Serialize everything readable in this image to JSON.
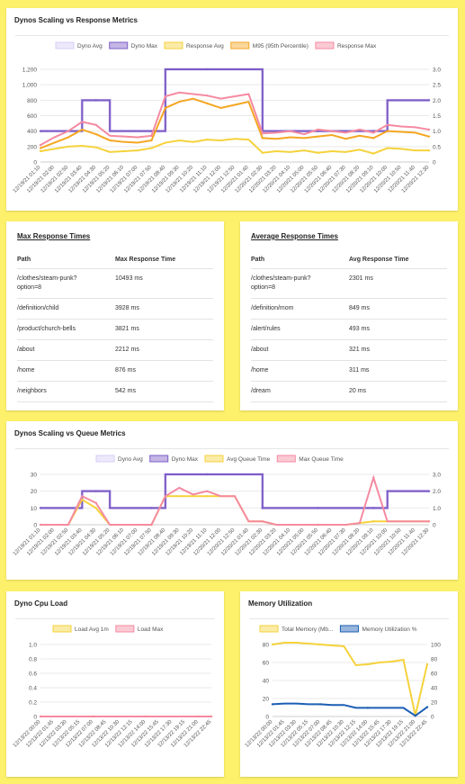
{
  "colors": {
    "dyno_avg": "#d6cff5",
    "dyno_max": "#7d5cc6",
    "response_avg": "#f5d23c",
    "m95": "#f5a623",
    "response_max": "#f58aa0",
    "total_memory": "#f5d23c",
    "memory_util": "#1b5eb4",
    "background": "#fdf06a"
  },
  "cards": {
    "response_title": "Dynos Scaling vs Response Metrics",
    "max_title": "Max Response Times",
    "avg_title": "Average Response Times",
    "queue_title": "Dynos Scaling vs Queue Metrics",
    "cpu_title": "Dyno Cpu Load",
    "memory_title": "Memory Utilization"
  },
  "max_table": {
    "headers": [
      "Path",
      "Max Response Time"
    ],
    "rows": [
      [
        "/clothes/steam-punk?option=8",
        "10493 ms"
      ],
      [
        "/definition/child",
        "3928 ms"
      ],
      [
        "/product/church-bells",
        "3821 ms"
      ],
      [
        "/about",
        "2212 ms"
      ],
      [
        "/home",
        "876 ms"
      ],
      [
        "/neighbors",
        "542 ms"
      ]
    ]
  },
  "avg_table": {
    "headers": [
      "Path",
      "Avg Response Time"
    ],
    "rows": [
      [
        "/clothes/steam-punk?option=8",
        "2301 ms"
      ],
      [
        "/definition/mom",
        "849 ms"
      ],
      [
        "/alert/rules",
        "493 ms"
      ],
      [
        "/about",
        "321 ms"
      ],
      [
        "/home",
        "311 ms"
      ],
      [
        "/dream",
        "20 ms"
      ]
    ]
  },
  "chart_data": [
    {
      "type": "line",
      "title": "Dynos Scaling vs Response Metrics",
      "x": [
        "12/19/21 01:10",
        "12/19/21 02:00",
        "12/19/21 02:50",
        "12/19/21 03:40",
        "12/19/21 04:30",
        "12/19/21 05:20",
        "12/19/21 06:10",
        "12/19/21 07:00",
        "12/19/21 07:50",
        "12/19/21 08:40",
        "12/19/21 09:30",
        "12/19/21 10:20",
        "12/19/21 11:10",
        "12/19/21 12:00",
        "12/19/21 12:50",
        "12/20/21 01:40",
        "12/20/21 02:30",
        "12/20/21 03:20",
        "12/20/21 04:10",
        "12/20/21 05:00",
        "12/20/21 05:50",
        "12/20/21 06:40",
        "12/20/21 07:30",
        "12/20/21 08:20",
        "12/20/21 09:10",
        "12/20/21 10:00",
        "12/20/21 10:50",
        "12/20/21 11:40",
        "12/20/21 12:30"
      ],
      "ylim": [
        0,
        1200
      ],
      "y2lim": [
        0,
        3
      ],
      "yticks": [
        "0",
        "200",
        "400",
        "600",
        "800",
        "1,000",
        "1,200"
      ],
      "y2ticks": [
        "0",
        "0.5",
        "1.0",
        "1.5",
        "2.0",
        "2.5",
        "3.0"
      ],
      "legend": "top",
      "series": [
        {
          "name": "Dyno Avg",
          "axis": "right",
          "values": [
            1,
            1,
            1,
            2,
            2,
            1,
            1,
            1,
            1,
            3,
            3,
            3,
            3,
            3,
            3,
            3,
            1,
            1,
            1,
            1,
            1,
            1,
            1,
            1,
            1,
            2,
            2,
            2,
            2
          ]
        },
        {
          "name": "Dyno Max",
          "axis": "right",
          "values": [
            1,
            1,
            1,
            2,
            2,
            1,
            1,
            1,
            1,
            3,
            3,
            3,
            3,
            3,
            3,
            3,
            1,
            1,
            1,
            1,
            1,
            1,
            1,
            1,
            1,
            2,
            2,
            2,
            2
          ]
        },
        {
          "name": "Response Avg",
          "axis": "left",
          "values": [
            140,
            170,
            200,
            210,
            190,
            130,
            140,
            150,
            180,
            250,
            280,
            260,
            290,
            280,
            300,
            290,
            120,
            140,
            130,
            150,
            120,
            140,
            130,
            160,
            110,
            180,
            170,
            150,
            150
          ]
        },
        {
          "name": "M95 (95th Percentile)",
          "axis": "left",
          "values": [
            180,
            250,
            320,
            420,
            360,
            280,
            260,
            250,
            280,
            700,
            780,
            820,
            760,
            700,
            740,
            780,
            310,
            300,
            320,
            310,
            330,
            350,
            300,
            340,
            310,
            400,
            390,
            380,
            330
          ]
        },
        {
          "name": "Response Max",
          "axis": "left",
          "values": [
            220,
            320,
            400,
            520,
            480,
            340,
            330,
            320,
            340,
            850,
            900,
            880,
            860,
            820,
            850,
            880,
            370,
            380,
            400,
            360,
            420,
            400,
            380,
            420,
            380,
            480,
            460,
            450,
            420
          ]
        }
      ]
    },
    {
      "type": "line",
      "title": "Dynos Scaling vs Queue Metrics",
      "x": [
        "12/19/21 01:10",
        "12/19/21 02:00",
        "12/19/21 02:50",
        "12/19/21 03:40",
        "12/19/21 04:30",
        "12/19/21 05:20",
        "12/19/21 06:10",
        "12/19/21 07:00",
        "12/19/21 07:50",
        "12/19/21 08:40",
        "12/19/21 09:30",
        "12/19/21 10:20",
        "12/19/21 11:10",
        "12/20/21 12:00",
        "12/20/21 12:50",
        "12/20/21 01:40",
        "12/20/21 02:30",
        "12/20/21 03:20",
        "12/20/21 04:10",
        "12/20/21 05:00",
        "12/20/21 05:50",
        "12/20/21 06:40",
        "12/20/21 07:30",
        "12/20/21 08:20",
        "12/20/21 09:10",
        "12/20/21 10:00",
        "12/20/21 10:50",
        "12/20/21 11:40",
        "12/20/21 12:30"
      ],
      "ylim": [
        0,
        30
      ],
      "y2lim": [
        0,
        3
      ],
      "yticks": [
        "0",
        "10",
        "20",
        "30"
      ],
      "y2ticks": [
        "0",
        "1.0",
        "2.0",
        "3.0"
      ],
      "legend": "top",
      "series": [
        {
          "name": "Dyno Avg",
          "axis": "right",
          "values": [
            1,
            1,
            1,
            2,
            2,
            1,
            1,
            1,
            1,
            3,
            3,
            3,
            3,
            3,
            3,
            3,
            1,
            1,
            1,
            1,
            1,
            1,
            1,
            1,
            1,
            2,
            2,
            2,
            2
          ]
        },
        {
          "name": "Dyno Max",
          "axis": "right",
          "values": [
            1,
            1,
            1,
            2,
            2,
            1,
            1,
            1,
            1,
            3,
            3,
            3,
            3,
            3,
            3,
            3,
            1,
            1,
            1,
            1,
            1,
            1,
            1,
            1,
            1,
            2,
            2,
            2,
            2
          ]
        },
        {
          "name": "Avg Queue Time",
          "axis": "left",
          "values": [
            0,
            0,
            0,
            15,
            10,
            0,
            0,
            0,
            0,
            17,
            17,
            17,
            17,
            17,
            17,
            2,
            2,
            0,
            0,
            0,
            0,
            0,
            0,
            1,
            2,
            2,
            2,
            2,
            2
          ]
        },
        {
          "name": "Max Queue Time",
          "axis": "left",
          "values": [
            0,
            0,
            0,
            17,
            13,
            0,
            0,
            0,
            0,
            17,
            22,
            18,
            20,
            17,
            17,
            2,
            2,
            0,
            0,
            0,
            0,
            0,
            0,
            1,
            28,
            2,
            2,
            2,
            2
          ]
        }
      ]
    },
    {
      "type": "line",
      "title": "Dyno Cpu Load",
      "x": [
        "12/13/22 00:00",
        "12/13/22 01:45",
        "12/13/22 03:30",
        "12/13/22 05:15",
        "12/13/22 07:00",
        "12/13/22 08:45",
        "12/13/22 10:30",
        "12/13/22 12:15",
        "12/13/22 14:00",
        "12/13/22 15:45",
        "12/13/22 17:30",
        "12/13/22 19:15",
        "12/13/22 21:00",
        "12/13/22 22:45"
      ],
      "ylim": [
        0,
        1
      ],
      "yticks": [
        "0",
        "0.2",
        "0.4",
        "0.6",
        "0.8",
        "1.0"
      ],
      "legend": "top",
      "series": [
        {
          "name": "Load Avg 1m",
          "values": [
            0,
            0,
            0,
            0,
            0,
            0,
            0,
            0,
            0,
            0,
            0,
            0,
            0,
            0
          ]
        },
        {
          "name": "Load Max",
          "values": [
            0,
            0,
            0,
            0,
            0,
            0,
            0,
            0,
            0,
            0,
            0,
            0,
            0,
            0
          ]
        }
      ]
    },
    {
      "type": "line",
      "title": "Memory Utilization",
      "x": [
        "12/13/22 00:00",
        "12/13/22 01:45",
        "12/13/22 03:30",
        "12/13/22 05:15",
        "12/13/22 07:00",
        "12/13/22 08:45",
        "12/13/22 10:30",
        "12/13/22 12:15",
        "12/13/22 14:00",
        "12/13/22 15:45",
        "12/13/22 17:30",
        "12/13/22 19:15",
        "12/13/22 21:00",
        "12/13/22 22:45"
      ],
      "ylim": [
        0,
        80
      ],
      "y2lim": [
        0,
        100
      ],
      "yticks": [
        "0",
        "20",
        "40",
        "60",
        "80"
      ],
      "y2ticks": [
        "0",
        "20",
        "40",
        "60",
        "80",
        "100"
      ],
      "legend": "top",
      "series": [
        {
          "name": "Total Memory (Mb...",
          "axis": "left",
          "values": [
            80,
            82,
            82,
            81,
            80,
            79,
            78,
            57,
            58,
            60,
            61,
            63,
            1,
            58
          ]
        },
        {
          "name": "Memory Utilization %",
          "axis": "right",
          "values": [
            17,
            18,
            18,
            17,
            17,
            16,
            16,
            12,
            12,
            12,
            12,
            12,
            1,
            13
          ]
        }
      ]
    }
  ]
}
